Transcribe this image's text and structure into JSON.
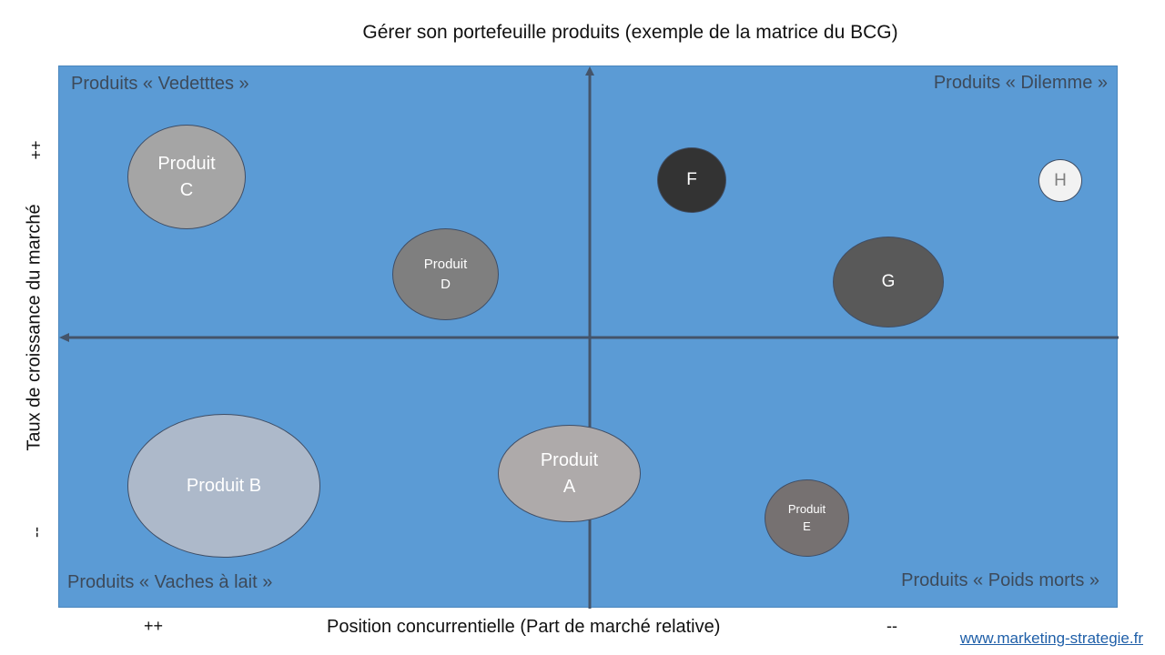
{
  "title": "Gérer son portefeuille produits (exemple de la matrice du BCG)",
  "quadrants": {
    "top_left": "Produits « Vedetttes »",
    "top_right": "Produits « Dilemme »",
    "bottom_left": "Produits « Vaches à lait »",
    "bottom_right": "Produits « Poids morts »"
  },
  "axes": {
    "y_label": "Taux de croissance du marché",
    "y_high": "++",
    "y_low": "--",
    "x_label": "Position concurrentielle (Part de marché relative)",
    "x_high": "++",
    "x_low": "--"
  },
  "bubbles": [
    {
      "label": "Produit\nC",
      "color": "#a5a5a5"
    },
    {
      "label": "Produit\nD",
      "color": "#7f7f7f"
    },
    {
      "label": "F",
      "color": "#333333"
    },
    {
      "label": "H",
      "color": "#f2f2f2"
    },
    {
      "label": "G",
      "color": "#595959"
    },
    {
      "label": "Produit B",
      "color": "#adb9ca"
    },
    {
      "label": "Produit\nA",
      "color": "#aeaaaa"
    },
    {
      "label": "Produit\nE",
      "color": "#767171"
    }
  ],
  "source_link": "www.marketing-strategie.fr"
}
